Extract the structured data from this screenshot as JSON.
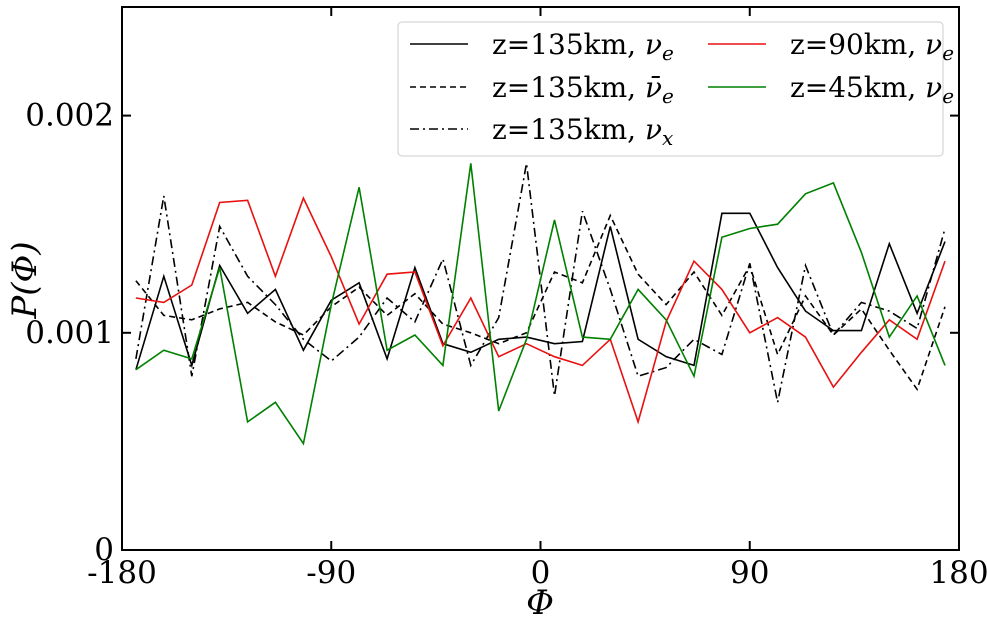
{
  "chart_data": {
    "type": "line",
    "xlabel": "Φ",
    "ylabel": "P(Φ)",
    "xlim": [
      -180,
      180
    ],
    "ylim": [
      0,
      0.0025
    ],
    "xticks": [
      {
        "value": -180,
        "label": "-180"
      },
      {
        "value": -90,
        "label": "-90"
      },
      {
        "value": 0,
        "label": "0"
      },
      {
        "value": 90,
        "label": "90"
      },
      {
        "value": 180,
        "label": "180"
      }
    ],
    "yticks": [
      {
        "value": 0,
        "label": "0"
      },
      {
        "value": 0.001,
        "label": "0.001"
      },
      {
        "value": 0.002,
        "label": "0.002"
      }
    ],
    "legend": {
      "position": "top-right",
      "columns": 2
    },
    "x": [
      -174,
      -162,
      -150,
      -138,
      -126,
      -114,
      -102,
      -90,
      -78,
      -66,
      -54,
      -42,
      -30,
      -18,
      -6,
      6,
      18,
      30,
      42,
      54,
      66,
      78,
      90,
      102,
      114,
      126,
      138,
      150,
      162,
      174
    ],
    "series": [
      {
        "name": "z=135km, ν_e",
        "name_main": "z=135km, ",
        "name_sym": "ν",
        "name_sub": "e",
        "name_bar": false,
        "color": "#000000",
        "dash": "solid",
        "values": [
          0.00083,
          0.00126,
          0.00085,
          0.00131,
          0.00109,
          0.0012,
          0.00092,
          0.00115,
          0.00123,
          0.00088,
          0.0013,
          0.00095,
          0.00091,
          0.00097,
          0.00098,
          0.00095,
          0.00096,
          0.00149,
          0.00097,
          0.00089,
          0.00085,
          0.00155,
          0.00155,
          0.0013,
          0.0011,
          0.00101,
          0.00101,
          0.00141,
          0.00109,
          0.00142
        ]
      },
      {
        "name": "z=135km, ν̄_e",
        "name_main": "z=135km, ",
        "name_sym": "ν",
        "name_sub": "e",
        "name_bar": true,
        "color": "#000000",
        "dash": "dashed",
        "values": [
          0.00124,
          0.00108,
          0.00106,
          0.00111,
          0.00114,
          0.00105,
          0.00099,
          0.00112,
          0.00121,
          0.00108,
          0.00118,
          0.00104,
          0.001,
          0.00095,
          0.001,
          0.00128,
          0.00123,
          0.00154,
          0.00127,
          0.00113,
          0.00128,
          0.00108,
          0.00131,
          0.0009,
          0.00117,
          0.00099,
          0.00111,
          0.00092,
          0.00074,
          0.00112
        ]
      },
      {
        "name": "z=135km, ν_x",
        "name_main": "z=135km, ",
        "name_sym": "ν",
        "name_sub": "x",
        "name_bar": false,
        "color": "#000000",
        "dash": "dashdot",
        "values": [
          0.00088,
          0.00163,
          0.0008,
          0.00149,
          0.00126,
          0.00113,
          0.00097,
          0.00087,
          0.00098,
          0.00116,
          0.00105,
          0.00134,
          0.00085,
          0.00107,
          0.00178,
          0.00071,
          0.00156,
          0.0012,
          0.0008,
          0.00084,
          0.00097,
          0.0009,
          0.00132,
          0.00068,
          0.00131,
          0.00099,
          0.00114,
          0.0011,
          0.00102,
          0.00148
        ]
      },
      {
        "name": "z=90km, ν_e",
        "name_main": "z=90km, ",
        "name_sym": "ν",
        "name_sub": "e",
        "name_bar": false,
        "color": "#e8110f",
        "dash": "solid",
        "values": [
          0.00116,
          0.00114,
          0.00122,
          0.0016,
          0.00161,
          0.00126,
          0.00162,
          0.00135,
          0.00104,
          0.00127,
          0.00128,
          0.00094,
          0.00116,
          0.00089,
          0.00095,
          0.00089,
          0.00085,
          0.00097,
          0.00059,
          0.00105,
          0.00133,
          0.0012,
          0.001,
          0.00107,
          0.00098,
          0.00075,
          0.00091,
          0.00106,
          0.00097,
          0.00133
        ]
      },
      {
        "name": "z=45km, ν_e",
        "name_main": "z=45km, ",
        "name_sym": "ν",
        "name_sub": "e",
        "name_bar": false,
        "color": "#008000",
        "dash": "solid",
        "values": [
          0.00083,
          0.00092,
          0.00088,
          0.0013,
          0.00059,
          0.00068,
          0.00049,
          0.00113,
          0.00167,
          0.00092,
          0.00099,
          0.00085,
          0.00178,
          0.00064,
          0.00097,
          0.00152,
          0.00098,
          0.00097,
          0.0012,
          0.00106,
          0.0008,
          0.00144,
          0.00148,
          0.0015,
          0.00164,
          0.00169,
          0.00137,
          0.00098,
          0.00117,
          0.00085
        ]
      }
    ]
  }
}
